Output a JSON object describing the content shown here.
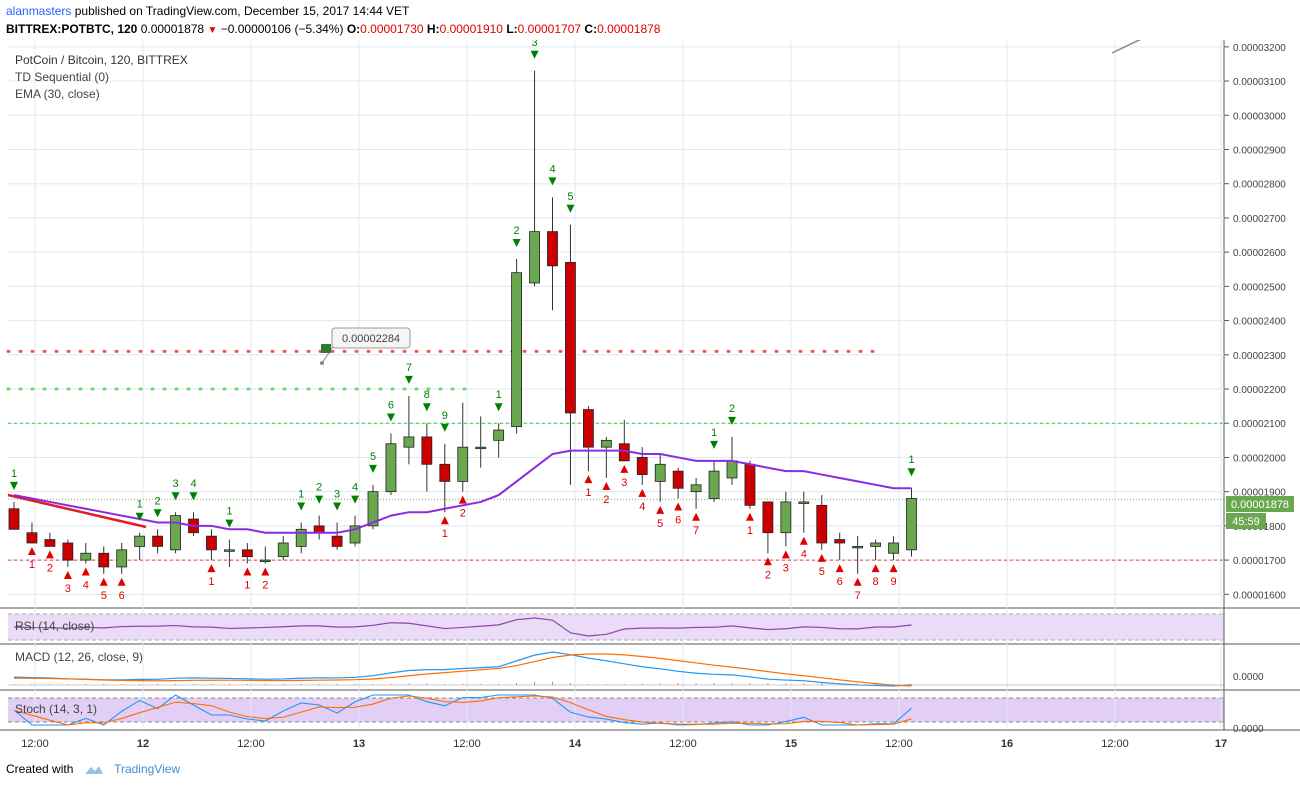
{
  "header": {
    "author": "alanmasters",
    "published_text": "published on TradingView.com, December 15, 2017 14:44 VET",
    "symbol": "BITTREX:POTBTC, 120",
    "last": "0.00001878",
    "change": "−0.00000106 (−5.34%)",
    "open_label": "O:",
    "open": "0.00001730",
    "high_label": "H:",
    "high": "0.00001910",
    "low_label": "L:",
    "low": "0.00001707",
    "close_label": "C:",
    "close": "0.00001878"
  },
  "legend": {
    "title": "PotCoin / Bitcoin, 120, BITTREX",
    "ind1": "TD Sequential (0)",
    "ind2": "EMA (30, close)"
  },
  "panes": {
    "rsi": "RSI (14, close)",
    "macd": "MACD (12, 26, close, 9)",
    "macd_zero": "0.0000",
    "stoch": "Stoch (14, 3, 1)",
    "stoch_zero": "0.0000"
  },
  "callout": "0.00002284",
  "price_badge": "0.00001878",
  "countdown": "45:59",
  "footer": {
    "created": "Created with",
    "brand": "TradingView"
  },
  "colors": {
    "up": "#6aa84f",
    "down": "#cc0000",
    "ema": "#8a2be2",
    "td_up": "#008000",
    "td_down": "#e00000"
  },
  "chart_data": {
    "type": "candlestick",
    "title": "PotCoin / Bitcoin, 120, BITTREX",
    "y_ticks": [
      "0.00001600",
      "0.00001700",
      "0.00001800",
      "0.00001900",
      "0.00002000",
      "0.00002100",
      "0.00002200",
      "0.00002300",
      "0.00002400",
      "0.00002500",
      "0.00002600",
      "0.00002700",
      "0.00002800",
      "0.00002900",
      "0.00003000",
      "0.00003100",
      "0.00003200"
    ],
    "ylim": [
      1.56e-05,
      3.22e-05
    ],
    "x_ticks": [
      "12:00",
      "12",
      "12:00",
      "13",
      "12:00",
      "14",
      "12:00",
      "15",
      "12:00",
      "16",
      "12:00",
      "17"
    ],
    "candles": [
      {
        "o": 1.85e-05,
        "h": 1.87e-05,
        "l": 1.79e-05,
        "c": 1.79e-05
      },
      {
        "o": 1.78e-05,
        "h": 1.81e-05,
        "l": 1.75e-05,
        "c": 1.75e-05
      },
      {
        "o": 1.76e-05,
        "h": 1.78e-05,
        "l": 1.74e-05,
        "c": 1.74e-05
      },
      {
        "o": 1.75e-05,
        "h": 1.76e-05,
        "l": 1.68e-05,
        "c": 1.7e-05
      },
      {
        "o": 1.7e-05,
        "h": 1.75e-05,
        "l": 1.69e-05,
        "c": 1.72e-05
      },
      {
        "o": 1.72e-05,
        "h": 1.74e-05,
        "l": 1.66e-05,
        "c": 1.68e-05
      },
      {
        "o": 1.68e-05,
        "h": 1.75e-05,
        "l": 1.66e-05,
        "c": 1.73e-05
      },
      {
        "o": 1.74e-05,
        "h": 1.78e-05,
        "l": 1.7e-05,
        "c": 1.77e-05
      },
      {
        "o": 1.77e-05,
        "h": 1.79e-05,
        "l": 1.72e-05,
        "c": 1.74e-05
      },
      {
        "o": 1.73e-05,
        "h": 1.84e-05,
        "l": 1.72e-05,
        "c": 1.83e-05
      },
      {
        "o": 1.82e-05,
        "h": 1.84e-05,
        "l": 1.77e-05,
        "c": 1.78e-05
      },
      {
        "o": 1.77e-05,
        "h": 1.79e-05,
        "l": 1.7e-05,
        "c": 1.73e-05
      },
      {
        "o": 1.73e-05,
        "h": 1.76e-05,
        "l": 1.68e-05,
        "c": 1.73e-05
      },
      {
        "o": 1.73e-05,
        "h": 1.75e-05,
        "l": 1.69e-05,
        "c": 1.71e-05
      },
      {
        "o": 1.7e-05,
        "h": 1.74e-05,
        "l": 1.69e-05,
        "c": 1.7e-05
      },
      {
        "o": 1.71e-05,
        "h": 1.77e-05,
        "l": 1.7e-05,
        "c": 1.75e-05
      },
      {
        "o": 1.74e-05,
        "h": 1.81e-05,
        "l": 1.72e-05,
        "c": 1.79e-05
      },
      {
        "o": 1.8e-05,
        "h": 1.83e-05,
        "l": 1.76e-05,
        "c": 1.78e-05
      },
      {
        "o": 1.77e-05,
        "h": 1.81e-05,
        "l": 1.73e-05,
        "c": 1.74e-05
      },
      {
        "o": 1.75e-05,
        "h": 1.83e-05,
        "l": 1.74e-05,
        "c": 1.8e-05
      },
      {
        "o": 1.8e-05,
        "h": 1.92e-05,
        "l": 1.79e-05,
        "c": 1.9e-05
      },
      {
        "o": 1.9e-05,
        "h": 2.07e-05,
        "l": 1.89e-05,
        "c": 2.04e-05
      },
      {
        "o": 2.03e-05,
        "h": 2.18e-05,
        "l": 1.98e-05,
        "c": 2.06e-05
      },
      {
        "o": 2.06e-05,
        "h": 2.1e-05,
        "l": 1.9e-05,
        "c": 1.98e-05
      },
      {
        "o": 1.98e-05,
        "h": 2.04e-05,
        "l": 1.84e-05,
        "c": 1.93e-05
      },
      {
        "o": 1.93e-05,
        "h": 2.16e-05,
        "l": 1.9e-05,
        "c": 2.03e-05
      },
      {
        "o": 2.03e-05,
        "h": 2.12e-05,
        "l": 1.97e-05,
        "c": 2.03e-05
      },
      {
        "o": 2.05e-05,
        "h": 2.1e-05,
        "l": 2e-05,
        "c": 2.08e-05
      },
      {
        "o": 2.09e-05,
        "h": 2.58e-05,
        "l": 2.07e-05,
        "c": 2.54e-05
      },
      {
        "o": 2.51e-05,
        "h": 3.13e-05,
        "l": 2.5e-05,
        "c": 2.66e-05
      },
      {
        "o": 2.66e-05,
        "h": 2.76e-05,
        "l": 2.43e-05,
        "c": 2.56e-05
      },
      {
        "o": 2.57e-05,
        "h": 2.68e-05,
        "l": 1.92e-05,
        "c": 2.13e-05
      },
      {
        "o": 2.14e-05,
        "h": 2.15e-05,
        "l": 1.96e-05,
        "c": 2.03e-05
      },
      {
        "o": 2.03e-05,
        "h": 2.06e-05,
        "l": 1.94e-05,
        "c": 2.05e-05
      },
      {
        "o": 2.04e-05,
        "h": 2.11e-05,
        "l": 1.99e-05,
        "c": 1.99e-05
      },
      {
        "o": 2e-05,
        "h": 2.03e-05,
        "l": 1.92e-05,
        "c": 1.95e-05
      },
      {
        "o": 1.93e-05,
        "h": 2.01e-05,
        "l": 1.87e-05,
        "c": 1.98e-05
      },
      {
        "o": 1.96e-05,
        "h": 1.97e-05,
        "l": 1.88e-05,
        "c": 1.91e-05
      },
      {
        "o": 1.9e-05,
        "h": 1.94e-05,
        "l": 1.85e-05,
        "c": 1.92e-05
      },
      {
        "o": 1.88e-05,
        "h": 1.99e-05,
        "l": 1.87e-05,
        "c": 1.96e-05
      },
      {
        "o": 1.94e-05,
        "h": 2.06e-05,
        "l": 1.92e-05,
        "c": 1.99e-05
      },
      {
        "o": 1.98e-05,
        "h": 1.99e-05,
        "l": 1.85e-05,
        "c": 1.86e-05
      },
      {
        "o": 1.87e-05,
        "h": 1.87e-05,
        "l": 1.72e-05,
        "c": 1.78e-05
      },
      {
        "o": 1.78e-05,
        "h": 1.9e-05,
        "l": 1.74e-05,
        "c": 1.87e-05
      },
      {
        "o": 1.87e-05,
        "h": 1.9e-05,
        "l": 1.78e-05,
        "c": 1.87e-05
      },
      {
        "o": 1.86e-05,
        "h": 1.89e-05,
        "l": 1.73e-05,
        "c": 1.75e-05
      },
      {
        "o": 1.76e-05,
        "h": 1.78e-05,
        "l": 1.7e-05,
        "c": 1.75e-05
      },
      {
        "o": 1.74e-05,
        "h": 1.77e-05,
        "l": 1.66e-05,
        "c": 1.74e-05
      },
      {
        "o": 1.74e-05,
        "h": 1.76e-05,
        "l": 1.7e-05,
        "c": 1.75e-05
      },
      {
        "o": 1.72e-05,
        "h": 1.77e-05,
        "l": 1.7e-05,
        "c": 1.75e-05
      },
      {
        "o": 1.73e-05,
        "h": 1.91e-05,
        "l": 1.71e-05,
        "c": 1.88e-05
      }
    ],
    "ema_30": [
      1.89e-05,
      1.88e-05,
      1.87e-05,
      1.86e-05,
      1.85e-05,
      1.84e-05,
      1.83e-05,
      1.82e-05,
      1.81e-05,
      1.81e-05,
      1.8e-05,
      1.8e-05,
      1.79e-05,
      1.79e-05,
      1.78e-05,
      1.78e-05,
      1.78e-05,
      1.78e-05,
      1.78e-05,
      1.79e-05,
      1.81e-05,
      1.83e-05,
      1.84e-05,
      1.84e-05,
      1.85e-05,
      1.86e-05,
      1.87e-05,
      1.89e-05,
      1.93e-05,
      1.97e-05,
      2.01e-05,
      2.02e-05,
      2.02e-05,
      2.02e-05,
      2.02e-05,
      2.01e-05,
      2.01e-05,
      2e-05,
      1.99e-05,
      1.99e-05,
      1.99e-05,
      1.98e-05,
      1.97e-05,
      1.96e-05,
      1.96e-05,
      1.95e-05,
      1.94e-05,
      1.93e-05,
      1.92e-05,
      1.91e-05,
      1.91e-05
    ],
    "td_setup_buy": [
      {
        "i": 1,
        "n": "1"
      },
      {
        "i": 2,
        "n": "2"
      },
      {
        "i": 3,
        "n": "3"
      },
      {
        "i": 4,
        "n": "4"
      },
      {
        "i": 5,
        "n": "5"
      },
      {
        "i": 6,
        "n": "6"
      },
      {
        "i": 11,
        "n": "1"
      },
      {
        "i": 13,
        "n": "1"
      },
      {
        "i": 14,
        "n": "2"
      },
      {
        "i": 24,
        "n": "1"
      },
      {
        "i": 25,
        "n": "2"
      },
      {
        "i": 32,
        "n": "1"
      },
      {
        "i": 33,
        "n": "2"
      },
      {
        "i": 34,
        "n": "3"
      },
      {
        "i": 35,
        "n": "4"
      },
      {
        "i": 36,
        "n": "5"
      },
      {
        "i": 37,
        "n": "6"
      },
      {
        "i": 38,
        "n": "7"
      },
      {
        "i": 41,
        "n": "1"
      },
      {
        "i": 42,
        "n": "2"
      },
      {
        "i": 43,
        "n": "3"
      },
      {
        "i": 44,
        "n": "4"
      },
      {
        "i": 45,
        "n": "5"
      },
      {
        "i": 46,
        "n": "6"
      },
      {
        "i": 47,
        "n": "7"
      },
      {
        "i": 48,
        "n": "8"
      },
      {
        "i": 49,
        "n": "9"
      }
    ],
    "td_setup_sell": [
      {
        "i": 0,
        "n": "1"
      },
      {
        "i": 7,
        "n": "1"
      },
      {
        "i": 8,
        "n": "2"
      },
      {
        "i": 9,
        "n": "3"
      },
      {
        "i": 10,
        "n": "4"
      },
      {
        "i": 12,
        "n": "1"
      },
      {
        "i": 16,
        "n": "1"
      },
      {
        "i": 17,
        "n": "2"
      },
      {
        "i": 18,
        "n": "3"
      },
      {
        "i": 19,
        "n": "4"
      },
      {
        "i": 20,
        "n": "5"
      },
      {
        "i": 21,
        "n": "6"
      },
      {
        "i": 22,
        "n": "7"
      },
      {
        "i": 23,
        "n": "8"
      },
      {
        "i": 24,
        "n": "9"
      },
      {
        "i": 27,
        "n": "1"
      },
      {
        "i": 28,
        "n": "2"
      },
      {
        "i": 29,
        "n": "3"
      },
      {
        "i": 30,
        "n": "4"
      },
      {
        "i": 31,
        "n": "5"
      },
      {
        "i": 39,
        "n": "1"
      },
      {
        "i": 40,
        "n": "2"
      },
      {
        "i": 50,
        "n": "1"
      }
    ],
    "levels": {
      "resistance_red_dotted": 2.31e-05,
      "green_dotted_upper": 2.2e-05,
      "green_dashed": 2.1e-05,
      "red_dashed": 1.7e-05,
      "last_price_line": 1.878e-05
    }
  }
}
